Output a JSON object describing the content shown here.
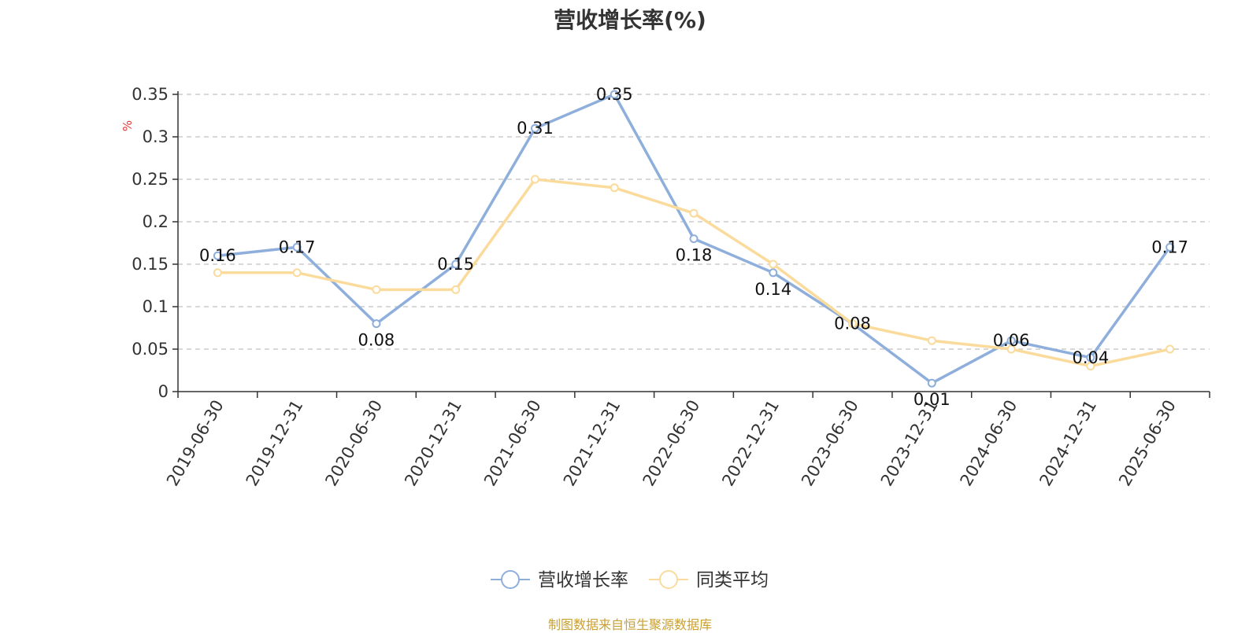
{
  "chart_data": {
    "type": "line",
    "title": "营收增长率(%)",
    "ylabel": "%",
    "ylim": [
      0,
      0.35
    ],
    "yticks": [
      "0",
      "0.05",
      "0.1",
      "0.15",
      "0.2",
      "0.25",
      "0.3",
      "0.35"
    ],
    "grid": true,
    "legend_position": "bottom-center",
    "categories": [
      "2019-06-30",
      "2019-12-31",
      "2020-06-30",
      "2020-12-31",
      "2021-06-30",
      "2021-12-31",
      "2022-06-30",
      "2022-12-31",
      "2023-06-30",
      "2023-12-31",
      "2024-06-30",
      "2024-12-31",
      "2025-06-30"
    ],
    "series": [
      {
        "name": "营收增长率",
        "color": "#8eaedb",
        "values": [
          0.16,
          0.17,
          0.08,
          0.15,
          0.31,
          0.35,
          0.18,
          0.14,
          0.08,
          0.01,
          0.06,
          0.04,
          0.17
        ],
        "data_labels": [
          "0.16",
          "0.17",
          "0.08",
          "0.15",
          "0.31",
          "0.35",
          "0.18",
          "0.14",
          "0.08",
          "0.01",
          "0.06",
          "0.04",
          "0.17"
        ]
      },
      {
        "name": "同类平均",
        "color": "#fbdb9c",
        "values": [
          0.14,
          0.14,
          0.12,
          0.12,
          0.25,
          0.24,
          0.21,
          0.15,
          0.08,
          0.06,
          0.05,
          0.03,
          0.05
        ]
      }
    ]
  },
  "source_note": "制图数据来自恒生聚源数据库"
}
